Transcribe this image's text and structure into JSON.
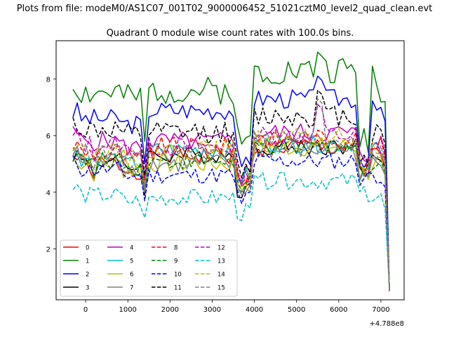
{
  "chart_data": {
    "type": "line",
    "suptitle": "Plots from file: modeM0/AS1C07_001T02_9000006452_51021cztM0_level2_quad_clean.evt",
    "title": "Quadrant 0 module wise count rates with 100.0s bins.",
    "xlabel": "",
    "ylabel": "",
    "x_offset_label": "+4.788e8",
    "xlim": [
      -700,
      7550
    ],
    "ylim": [
      0.2,
      9.35
    ],
    "xticks": [
      0,
      1000,
      2000,
      3000,
      4000,
      5000,
      6000,
      7000
    ],
    "xtick_labels": [
      "0",
      "1000",
      "2000",
      "3000",
      "4000",
      "5000",
      "6000",
      "7000"
    ],
    "yticks": [
      2,
      4,
      6,
      8
    ],
    "ytick_labels": [
      "2",
      "4",
      "6",
      "8"
    ],
    "x_start": -300,
    "x_step": 100,
    "n_points": 76,
    "legend": {
      "position": "lower-left",
      "ncol": 4
    },
    "colors": {
      "red": "#ff0000",
      "green": "#008000",
      "blue": "#0000ff",
      "black": "#000000",
      "magenta": "#bf00bf",
      "cyan": "#00bfbf",
      "olive": "#bfbf00",
      "gray": "#808080"
    },
    "series": [
      {
        "name": "0",
        "color": "#ff0000",
        "dash": "solid",
        "base": 5.3,
        "early": 5.0,
        "bump": 5.6,
        "dip": 4.5,
        "lastdip": 4.6,
        "amp": 0.35,
        "seed": 1
      },
      {
        "name": "1",
        "color": "#008000",
        "dash": "solid",
        "base": 7.6,
        "early": 7.5,
        "bump": 8.3,
        "dip": 6.0,
        "lastdip": 5.9,
        "amp": 0.5,
        "seed": 2
      },
      {
        "name": "2",
        "color": "#0000ff",
        "dash": "solid",
        "base": 6.9,
        "early": 6.6,
        "bump": 7.3,
        "dip": 5.2,
        "lastdip": 5.2,
        "amp": 0.35,
        "seed": 3
      },
      {
        "name": "3",
        "color": "#000000",
        "dash": "solid",
        "base": 5.3,
        "early": 5.1,
        "bump": 5.6,
        "dip": 4.1,
        "lastdip": 4.8,
        "amp": 0.3,
        "seed": 4
      },
      {
        "name": "4",
        "color": "#bf00bf",
        "dash": "solid",
        "base": 5.8,
        "early": 5.8,
        "bump": 6.1,
        "dip": 4.7,
        "lastdip": 5.2,
        "amp": 0.35,
        "seed": 5
      },
      {
        "name": "5",
        "color": "#00bfbf",
        "dash": "solid",
        "base": 5.5,
        "early": 5.2,
        "bump": 5.7,
        "dip": 4.6,
        "lastdip": 4.7,
        "amp": 0.3,
        "seed": 6
      },
      {
        "name": "6",
        "color": "#bfbf00",
        "dash": "solid",
        "base": 5.0,
        "early": 5.0,
        "bump": 5.6,
        "dip": 4.4,
        "lastdip": 4.7,
        "amp": 0.35,
        "seed": 7
      },
      {
        "name": "7",
        "color": "#808080",
        "dash": "solid",
        "base": 5.0,
        "early": 5.1,
        "bump": 5.5,
        "dip": 4.2,
        "lastdip": 4.5,
        "amp": 0.35,
        "seed": 8
      },
      {
        "name": "8",
        "color": "#ff0000",
        "dash": "dashed",
        "base": 5.6,
        "early": 5.4,
        "bump": 5.9,
        "dip": 4.6,
        "lastdip": 4.9,
        "amp": 0.35,
        "seed": 9
      },
      {
        "name": "9",
        "color": "#008000",
        "dash": "dashed",
        "base": 5.1,
        "early": 5.1,
        "bump": 5.6,
        "dip": 4.3,
        "lastdip": 4.7,
        "amp": 0.3,
        "seed": 10
      },
      {
        "name": "10",
        "color": "#0000ff",
        "dash": "dashed",
        "base": 4.6,
        "early": 4.8,
        "bump": 5.1,
        "dip": 3.9,
        "lastdip": 4.5,
        "amp": 0.3,
        "seed": 11
      },
      {
        "name": "11",
        "color": "#000000",
        "dash": "dashed",
        "base": 6.1,
        "early": 6.2,
        "bump": 6.7,
        "dip": 4.8,
        "lastdip": 5.2,
        "amp": 0.4,
        "seed": 12
      },
      {
        "name": "12",
        "color": "#bf00bf",
        "dash": "dashed",
        "base": 5.6,
        "early": 5.7,
        "bump": 6.0,
        "dip": 4.5,
        "lastdip": 5.0,
        "amp": 0.35,
        "seed": 13
      },
      {
        "name": "13",
        "color": "#00bfbf",
        "dash": "dashed",
        "base": 3.8,
        "early": 3.9,
        "bump": 4.4,
        "dip": 3.3,
        "lastdip": 3.9,
        "amp": 0.3,
        "seed": 14
      },
      {
        "name": "14",
        "color": "#bfbf00",
        "dash": "dashed",
        "base": 5.5,
        "early": 5.4,
        "bump": 5.9,
        "dip": 4.5,
        "lastdip": 4.9,
        "amp": 0.35,
        "seed": 15
      },
      {
        "name": "15",
        "color": "#808080",
        "dash": "dashed",
        "base": 5.4,
        "early": 5.4,
        "bump": 5.9,
        "dip": 4.3,
        "lastdip": 4.6,
        "amp": 0.35,
        "seed": 16
      }
    ],
    "peaks": {
      "11": 7.6,
      "1": 8.95,
      "2": 8.1,
      "12": 7.1,
      "15": 7.3
    },
    "end_values": [
      0.5,
      0.55,
      0.6,
      0.6,
      0.65,
      0.7,
      0.6,
      0.55,
      0.6,
      0.6,
      0.65,
      0.6,
      0.7,
      0.6,
      0.65,
      0.5
    ]
  }
}
